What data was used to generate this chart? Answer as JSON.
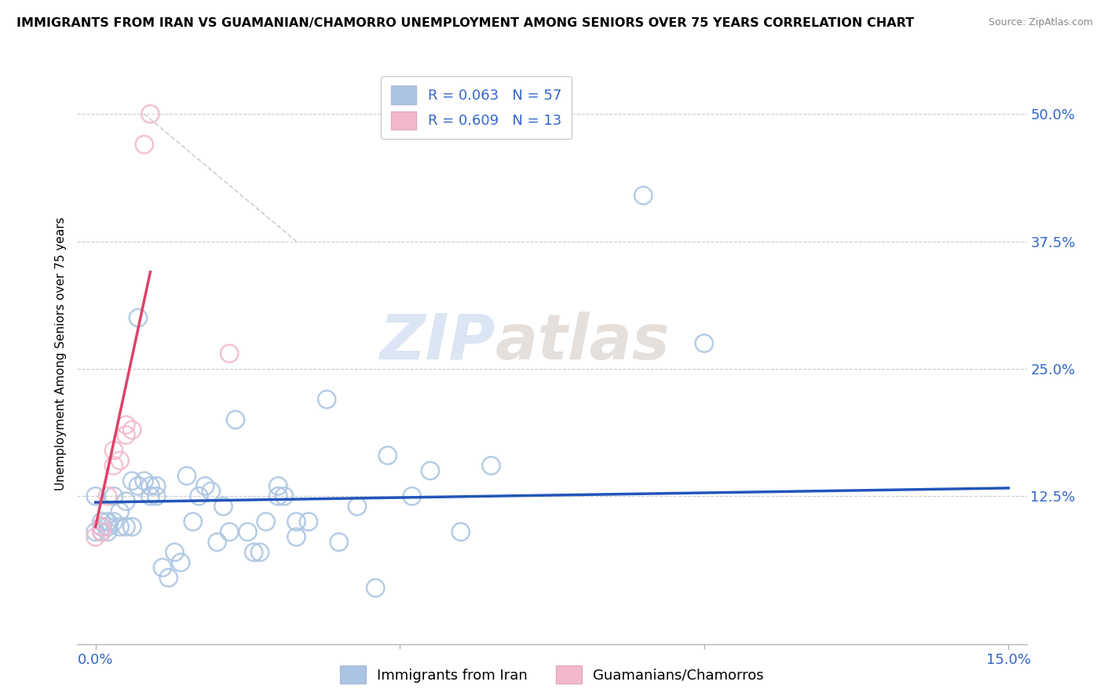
{
  "title": "IMMIGRANTS FROM IRAN VS GUAMANIAN/CHAMORRO UNEMPLOYMENT AMONG SENIORS OVER 75 YEARS CORRELATION CHART",
  "source": "Source: ZipAtlas.com",
  "ylabel_label": "Unemployment Among Seniors over 75 years",
  "xlim": [
    0.0,
    0.15
  ],
  "ylim": [
    -0.02,
    0.55
  ],
  "ytick_vals": [
    0.125,
    0.25,
    0.375,
    0.5
  ],
  "xtick_vals": [
    0.0,
    0.15
  ],
  "xtick_minor_vals": [
    0.05,
    0.1
  ],
  "legend_labels": [
    "Immigrants from Iran",
    "Guamanians/Chamorros"
  ],
  "R_iran": 0.063,
  "N_iran": 57,
  "R_guam": 0.609,
  "N_guam": 13,
  "color_iran": "#aac4e2",
  "color_guam": "#f2b8cc",
  "line_iran": "#2255bb",
  "line_guam": "#dd4466",
  "trendline_dashed_color": "#c8c8c8",
  "watermark_zip": "ZIP",
  "watermark_atlas": "atlas",
  "iran_points": [
    [
      0.0,
      0.125
    ],
    [
      0.0,
      0.09
    ],
    [
      0.001,
      0.09
    ],
    [
      0.001,
      0.095
    ],
    [
      0.001,
      0.1
    ],
    [
      0.002,
      0.09
    ],
    [
      0.002,
      0.095
    ],
    [
      0.002,
      0.1
    ],
    [
      0.003,
      0.125
    ],
    [
      0.003,
      0.1
    ],
    [
      0.004,
      0.095
    ],
    [
      0.004,
      0.11
    ],
    [
      0.005,
      0.12
    ],
    [
      0.005,
      0.095
    ],
    [
      0.006,
      0.14
    ],
    [
      0.006,
      0.095
    ],
    [
      0.007,
      0.135
    ],
    [
      0.007,
      0.3
    ],
    [
      0.008,
      0.14
    ],
    [
      0.009,
      0.125
    ],
    [
      0.009,
      0.135
    ],
    [
      0.01,
      0.125
    ],
    [
      0.01,
      0.135
    ],
    [
      0.011,
      0.055
    ],
    [
      0.012,
      0.045
    ],
    [
      0.013,
      0.07
    ],
    [
      0.014,
      0.06
    ],
    [
      0.015,
      0.145
    ],
    [
      0.016,
      0.1
    ],
    [
      0.017,
      0.125
    ],
    [
      0.018,
      0.135
    ],
    [
      0.019,
      0.13
    ],
    [
      0.02,
      0.08
    ],
    [
      0.021,
      0.115
    ],
    [
      0.022,
      0.09
    ],
    [
      0.023,
      0.2
    ],
    [
      0.025,
      0.09
    ],
    [
      0.026,
      0.07
    ],
    [
      0.027,
      0.07
    ],
    [
      0.028,
      0.1
    ],
    [
      0.03,
      0.135
    ],
    [
      0.03,
      0.125
    ],
    [
      0.031,
      0.125
    ],
    [
      0.033,
      0.1
    ],
    [
      0.033,
      0.085
    ],
    [
      0.035,
      0.1
    ],
    [
      0.038,
      0.22
    ],
    [
      0.04,
      0.08
    ],
    [
      0.043,
      0.115
    ],
    [
      0.046,
      0.035
    ],
    [
      0.048,
      0.165
    ],
    [
      0.052,
      0.125
    ],
    [
      0.055,
      0.15
    ],
    [
      0.06,
      0.09
    ],
    [
      0.065,
      0.155
    ],
    [
      0.09,
      0.42
    ],
    [
      0.1,
      0.275
    ]
  ],
  "guam_points": [
    [
      0.0,
      0.085
    ],
    [
      0.001,
      0.09
    ],
    [
      0.001,
      0.095
    ],
    [
      0.002,
      0.125
    ],
    [
      0.003,
      0.155
    ],
    [
      0.003,
      0.17
    ],
    [
      0.004,
      0.16
    ],
    [
      0.005,
      0.185
    ],
    [
      0.005,
      0.195
    ],
    [
      0.006,
      0.19
    ],
    [
      0.008,
      0.47
    ],
    [
      0.009,
      0.5
    ],
    [
      0.022,
      0.265
    ]
  ],
  "iran_trendline": [
    0.0,
    0.15,
    0.119,
    0.133
  ],
  "guam_trendline_x": [
    0.0,
    0.009
  ],
  "guam_trendline_y": [
    0.095,
    0.345
  ],
  "diag_line": [
    [
      0.008,
      0.5
    ],
    [
      0.033,
      0.375
    ]
  ]
}
